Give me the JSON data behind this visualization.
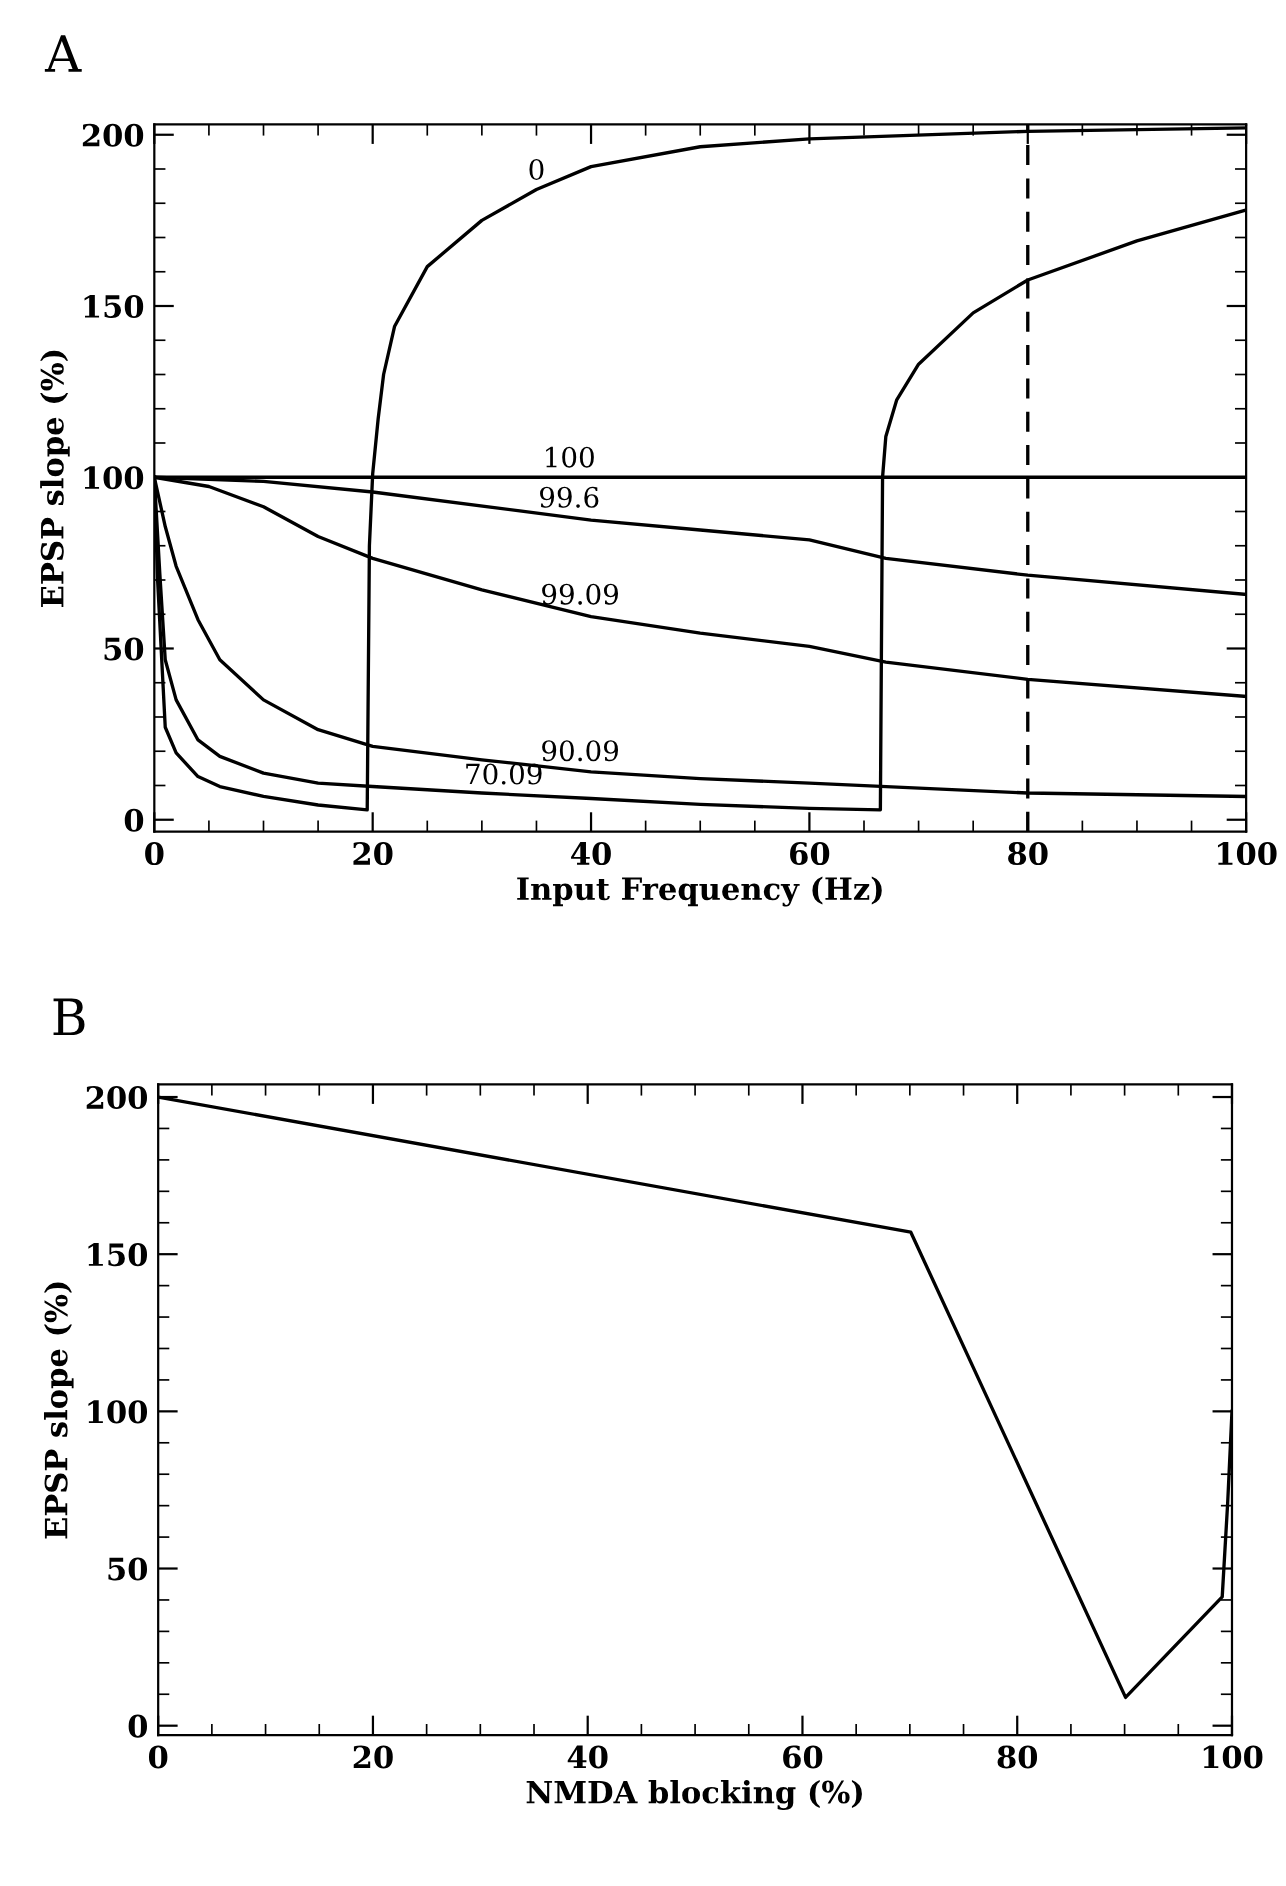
{
  "chart_data": [
    {
      "type": "line",
      "title": "A",
      "xlabel": "Input Frequency (Hz)",
      "ylabel": "EPSP slope (%)",
      "xlim": [
        0,
        100
      ],
      "xticks": [
        0,
        20,
        40,
        60,
        80,
        100
      ],
      "ylim": [
        -3.5,
        203
      ],
      "yticks": [
        0,
        50,
        100,
        150,
        200
      ],
      "grid": false,
      "legend": false,
      "marker": "none",
      "line_style": "solid",
      "series": [
        {
          "color": "#000000",
          "x": [
            0,
            100
          ],
          "values": [
            100,
            100
          ]
        },
        {
          "color": "#000000",
          "x": [
            0,
            10,
            20,
            40,
            50,
            60,
            67,
            80,
            100
          ],
          "values": [
            100,
            98.8,
            95.7,
            87.5,
            84.6,
            81.7,
            76.3,
            71.4,
            65.8
          ]
        },
        {
          "color": "#000000",
          "x": [
            0,
            5,
            10,
            15,
            20,
            30,
            40,
            50,
            60,
            67,
            80,
            100
          ],
          "values": [
            100,
            97.3,
            91.4,
            82.7,
            76.3,
            67.1,
            59.3,
            54.5,
            50.6,
            46,
            41,
            36
          ]
        },
        {
          "color": "#000000",
          "x": [
            0,
            1,
            2,
            4,
            6,
            10,
            15,
            20,
            30,
            40,
            50,
            60,
            80,
            100
          ],
          "values": [
            100,
            85.6,
            74,
            58.4,
            46.7,
            35,
            26.3,
            21.4,
            17.5,
            14,
            12,
            10.7,
            7.8,
            6.8
          ]
        },
        {
          "color": "#000000",
          "x": [
            0,
            0.5,
            1,
            2,
            4,
            6,
            10,
            15,
            20,
            30,
            40,
            50,
            60,
            66.5,
            66.7,
            67,
            68,
            70,
            75,
            80,
            90,
            100
          ],
          "values": [
            100,
            72,
            46.7,
            35,
            23.3,
            18.5,
            13.6,
            10.7,
            9.7,
            7.8,
            6.2,
            4.5,
            3.3,
            2.9,
            100,
            111.9,
            122.6,
            133,
            148,
            157.6,
            169,
            178
          ]
        },
        {
          "color": "#000000",
          "x": [
            0,
            0.3,
            1,
            2,
            4,
            6,
            10,
            15,
            19.5,
            19.7,
            20,
            20.5,
            21,
            22,
            25,
            30,
            35,
            40,
            50,
            60,
            80,
            100
          ],
          "values": [
            100,
            70,
            27,
            19.5,
            12.6,
            9.7,
            6.8,
            4.3,
            2.9,
            80,
            101,
            117,
            130,
            144,
            161.5,
            175,
            184,
            190.7,
            196.5,
            198.8,
            201,
            202
          ]
        }
      ],
      "ref_lines": [
        {
          "axis": "x",
          "value": 80,
          "color": "#000000",
          "line_style": "dashed"
        }
      ],
      "annotations": [
        {
          "text": "0",
          "x": 35,
          "y": 184
        },
        {
          "text": "100",
          "x": 38,
          "y": 100
        },
        {
          "text": "99.6",
          "x": 38,
          "y": 88.3
        },
        {
          "text": "99.09",
          "x": 39,
          "y": 60
        },
        {
          "text": "90.09",
          "x": 39,
          "y": 14.3
        },
        {
          "text": "70.09",
          "x": 32,
          "y": 7.5
        }
      ]
    },
    {
      "type": "line",
      "title": "B",
      "xlabel": "NMDA blocking (%)",
      "ylabel": "EPSP slope (%)",
      "xlim": [
        0,
        100
      ],
      "xticks": [
        0,
        20,
        40,
        60,
        80,
        100
      ],
      "ylim": [
        -3,
        204
      ],
      "yticks": [
        0,
        50,
        100,
        150,
        200
      ],
      "grid": false,
      "legend": false,
      "marker": "none",
      "line_style": "solid",
      "series": [
        {
          "color": "#000000",
          "x": [
            0,
            70.09,
            90.09,
            99.09,
            99.6,
            100
          ],
          "values": [
            200,
            157,
            9,
            41,
            71,
            100
          ]
        }
      ]
    }
  ]
}
